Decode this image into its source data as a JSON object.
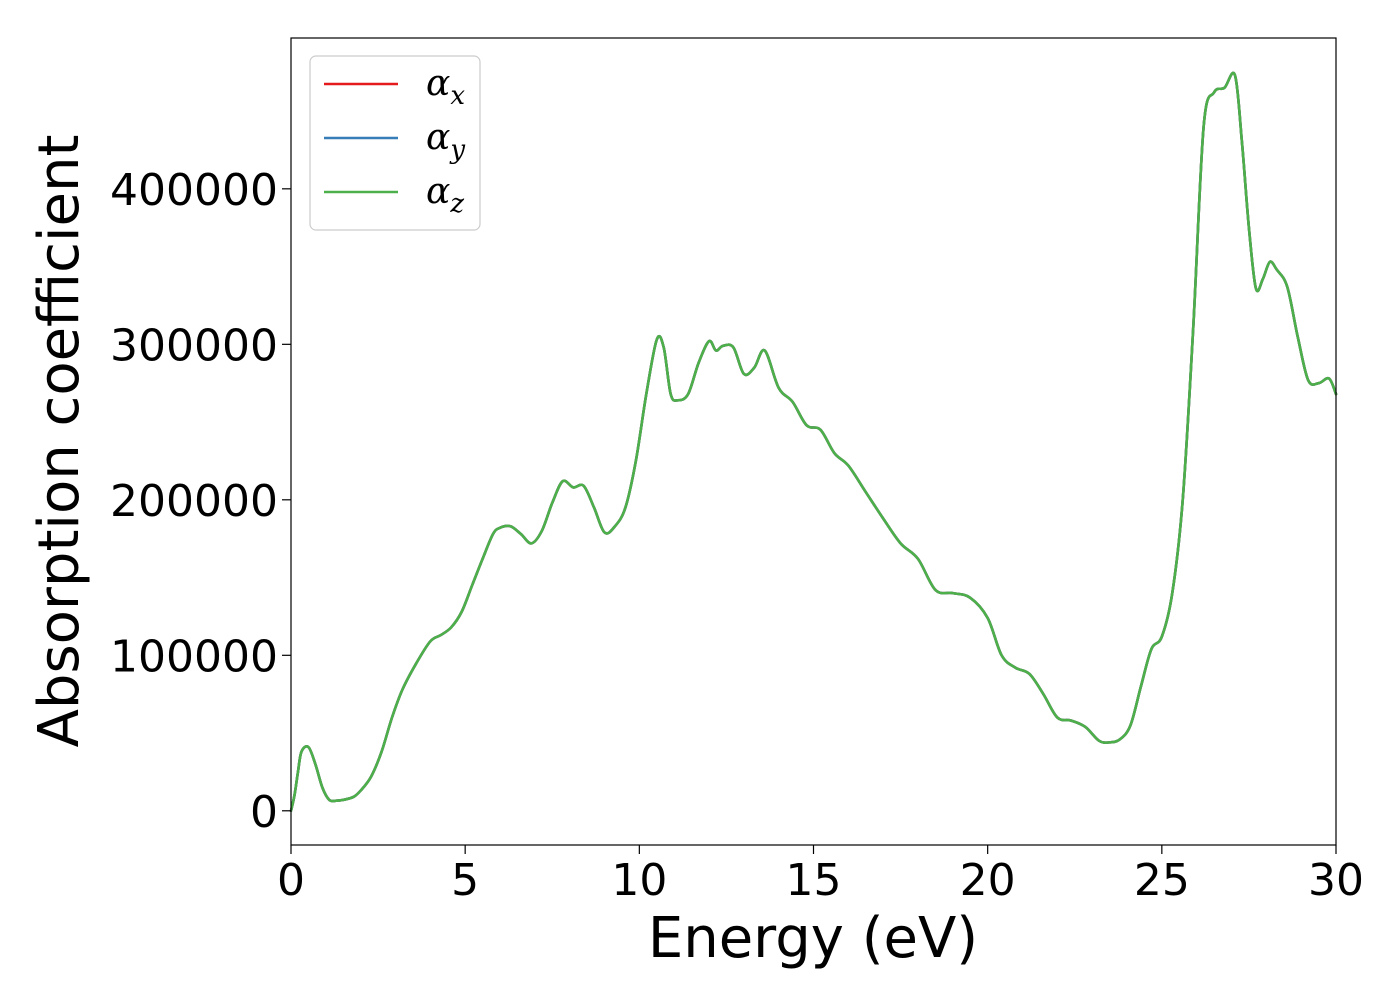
{
  "chart_data": {
    "type": "line",
    "xlabel": "Energy (eV)",
    "ylabel": "Absorption coefficient",
    "xlim": [
      0,
      30
    ],
    "ylim": [
      -22000,
      497000
    ],
    "xticks": [
      "0",
      "5",
      "10",
      "15",
      "20",
      "25",
      "30"
    ],
    "yticks": [
      "0",
      "100000",
      "200000",
      "300000",
      "400000"
    ],
    "grid": false,
    "legend_position": "top-left",
    "x": [
      0.0,
      0.1,
      0.2,
      0.3,
      0.5,
      0.7,
      0.9,
      1.1,
      1.3,
      1.5,
      1.8,
      2.0,
      2.3,
      2.6,
      2.9,
      3.2,
      3.6,
      4.0,
      4.3,
      4.6,
      4.9,
      5.2,
      5.5,
      5.8,
      6.0,
      6.3,
      6.6,
      6.9,
      7.2,
      7.5,
      7.8,
      8.1,
      8.4,
      8.7,
      9.0,
      9.3,
      9.6,
      9.9,
      10.2,
      10.5,
      10.7,
      10.9,
      11.1,
      11.4,
      11.7,
      12.0,
      12.2,
      12.4,
      12.7,
      13.0,
      13.3,
      13.6,
      14.0,
      14.4,
      14.8,
      15.2,
      15.6,
      16.0,
      16.5,
      17.0,
      17.5,
      18.0,
      18.5,
      19.0,
      19.5,
      20.0,
      20.4,
      20.8,
      21.2,
      21.6,
      22.0,
      22.4,
      22.8,
      23.2,
      23.5,
      23.8,
      24.1,
      24.4,
      24.7,
      25.0,
      25.3,
      25.6,
      25.9,
      26.2,
      26.5,
      26.8,
      27.1,
      27.3,
      27.5,
      27.7,
      27.9,
      28.1,
      28.3,
      28.6,
      28.9,
      29.2,
      29.5,
      29.8,
      30.0
    ],
    "series": [
      {
        "name": "α_x",
        "color": "#e41a1c",
        "values": [
          0,
          10000,
          25000,
          38000,
          41000,
          30000,
          15000,
          7000,
          6500,
          7000,
          9000,
          13000,
          22000,
          38000,
          60000,
          78000,
          95000,
          109000,
          113000,
          118000,
          128000,
          145000,
          162000,
          178000,
          182000,
          183000,
          178000,
          172000,
          180000,
          198000,
          212000,
          208000,
          209000,
          195000,
          179000,
          183000,
          195000,
          225000,
          268000,
          303000,
          298000,
          268000,
          264000,
          268000,
          288000,
          302000,
          296000,
          299000,
          298000,
          281000,
          285000,
          296000,
          272000,
          263000,
          248000,
          245000,
          230000,
          222000,
          205000,
          188000,
          172000,
          162000,
          142000,
          140000,
          137000,
          124000,
          100000,
          92000,
          88000,
          75000,
          60000,
          58000,
          54000,
          45000,
          44000,
          46000,
          55000,
          80000,
          104000,
          112000,
          140000,
          200000,
          310000,
          440000,
          462000,
          465000,
          473000,
          430000,
          375000,
          336000,
          342000,
          353000,
          348000,
          337000,
          305000,
          277000,
          275000,
          278000,
          268000
        ]
      },
      {
        "name": "α_y",
        "color": "#377eb8",
        "values": [
          0,
          10000,
          25000,
          38000,
          41000,
          30000,
          15000,
          7000,
          6500,
          7000,
          9000,
          13000,
          22000,
          38000,
          60000,
          78000,
          95000,
          109000,
          113000,
          118000,
          128000,
          145000,
          162000,
          178000,
          182000,
          183000,
          178000,
          172000,
          180000,
          198000,
          212000,
          208000,
          209000,
          195000,
          179000,
          183000,
          195000,
          225000,
          268000,
          303000,
          298000,
          268000,
          264000,
          268000,
          288000,
          302000,
          296000,
          299000,
          298000,
          281000,
          285000,
          296000,
          272000,
          263000,
          248000,
          245000,
          230000,
          222000,
          205000,
          188000,
          172000,
          162000,
          142000,
          140000,
          137000,
          124000,
          100000,
          92000,
          88000,
          75000,
          60000,
          58000,
          54000,
          45000,
          44000,
          46000,
          55000,
          80000,
          104000,
          112000,
          140000,
          200000,
          310000,
          440000,
          462000,
          465000,
          473000,
          430000,
          375000,
          336000,
          342000,
          353000,
          348000,
          337000,
          305000,
          277000,
          275000,
          278000,
          268000
        ]
      },
      {
        "name": "α_z",
        "color": "#4daf4a",
        "values": [
          0,
          10000,
          25000,
          38000,
          41000,
          30000,
          15000,
          7000,
          6500,
          7000,
          9000,
          13000,
          22000,
          38000,
          60000,
          78000,
          95000,
          109000,
          113000,
          118000,
          128000,
          145000,
          162000,
          178000,
          182000,
          183000,
          178000,
          172000,
          180000,
          198000,
          212000,
          208000,
          209000,
          195000,
          179000,
          183000,
          195000,
          225000,
          268000,
          303000,
          298000,
          268000,
          264000,
          268000,
          288000,
          302000,
          296000,
          299000,
          298000,
          281000,
          285000,
          296000,
          272000,
          263000,
          248000,
          245000,
          230000,
          222000,
          205000,
          188000,
          172000,
          162000,
          142000,
          140000,
          137000,
          124000,
          100000,
          92000,
          88000,
          75000,
          60000,
          58000,
          54000,
          45000,
          44000,
          46000,
          55000,
          80000,
          104000,
          112000,
          140000,
          200000,
          310000,
          440000,
          462000,
          465000,
          473000,
          430000,
          375000,
          336000,
          342000,
          353000,
          348000,
          337000,
          305000,
          277000,
          275000,
          278000,
          268000
        ]
      }
    ],
    "legend": [
      {
        "symbol": "α",
        "sub": "x",
        "color": "#e41a1c"
      },
      {
        "symbol": "α",
        "sub": "y",
        "color": "#377eb8"
      },
      {
        "symbol": "α",
        "sub": "z",
        "color": "#4daf4a"
      }
    ]
  }
}
